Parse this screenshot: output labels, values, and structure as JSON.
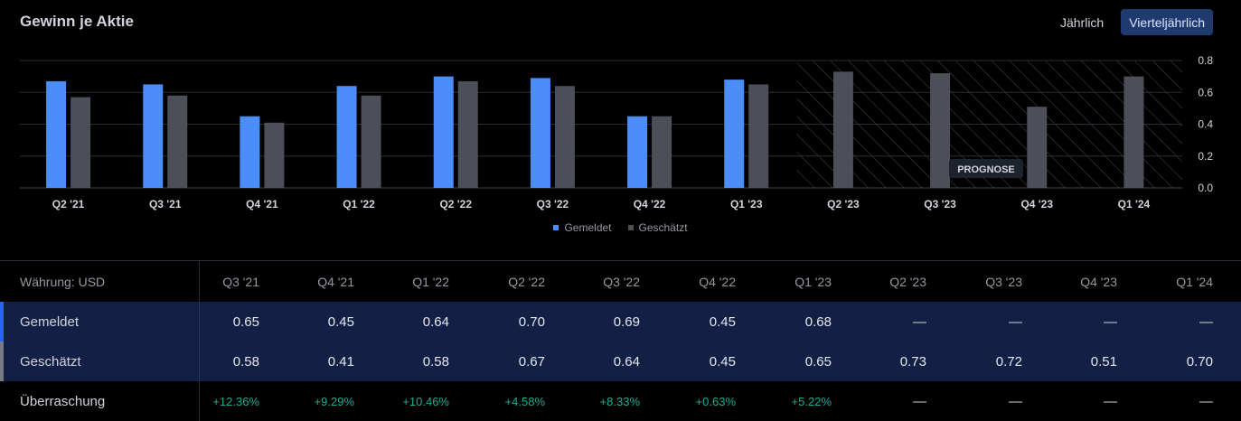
{
  "title": "Gewinn je Aktie",
  "toggle": {
    "annual": "Jährlich",
    "quarterly": "Vierteljährlich"
  },
  "chart_data": {
    "type": "bar",
    "title": "Gewinn je Aktie",
    "categories": [
      "Q2 '21",
      "Q3 '21",
      "Q4 '21",
      "Q1 '22",
      "Q2 '22",
      "Q3 '22",
      "Q4 '22",
      "Q1 '23",
      "Q2 '23",
      "Q3 '23",
      "Q4 '23",
      "Q1 '24"
    ],
    "series": [
      {
        "name": "Gemeldet",
        "color": "#4b8ef9",
        "values": [
          0.67,
          0.65,
          0.45,
          0.64,
          0.7,
          0.69,
          0.45,
          0.68,
          null,
          null,
          null,
          null
        ]
      },
      {
        "name": "Geschätzt",
        "color": "#4c4f57",
        "values": [
          0.57,
          0.58,
          0.41,
          0.58,
          0.67,
          0.64,
          0.45,
          0.65,
          0.73,
          0.72,
          0.51,
          0.7
        ]
      }
    ],
    "ylim": [
      0,
      0.8
    ],
    "yticks": [
      "0.8",
      "0.6",
      "0.4",
      "0.2",
      "0.0"
    ],
    "forecast_label": "PROGNOSE",
    "forecast_start_category": "Q2 '23",
    "grid": true,
    "legend": "bottom-center"
  },
  "table": {
    "currency_label": "Währung: USD",
    "columns": [
      "Q3 '21",
      "Q4 '21",
      "Q1 '22",
      "Q2 '22",
      "Q3 '22",
      "Q4 '22",
      "Q1 '23",
      "Q2 '23",
      "Q3 '23",
      "Q4 '23",
      "Q1 '24"
    ],
    "rows": [
      {
        "label": "Gemeldet",
        "marker": "#2962ff",
        "values": [
          "0.65",
          "0.45",
          "0.64",
          "0.70",
          "0.69",
          "0.45",
          "0.68",
          "—",
          "—",
          "—",
          "—"
        ]
      },
      {
        "label": "Geschätzt",
        "marker": "#787b86",
        "values": [
          "0.58",
          "0.41",
          "0.58",
          "0.67",
          "0.64",
          "0.45",
          "0.65",
          "0.73",
          "0.72",
          "0.51",
          "0.70"
        ]
      },
      {
        "label": "Überraschung",
        "values": [
          "+12.36%",
          "+9.29%",
          "+10.46%",
          "+4.58%",
          "+8.33%",
          "+0.63%",
          "+5.22%",
          "—",
          "—",
          "—",
          "—"
        ]
      }
    ]
  }
}
